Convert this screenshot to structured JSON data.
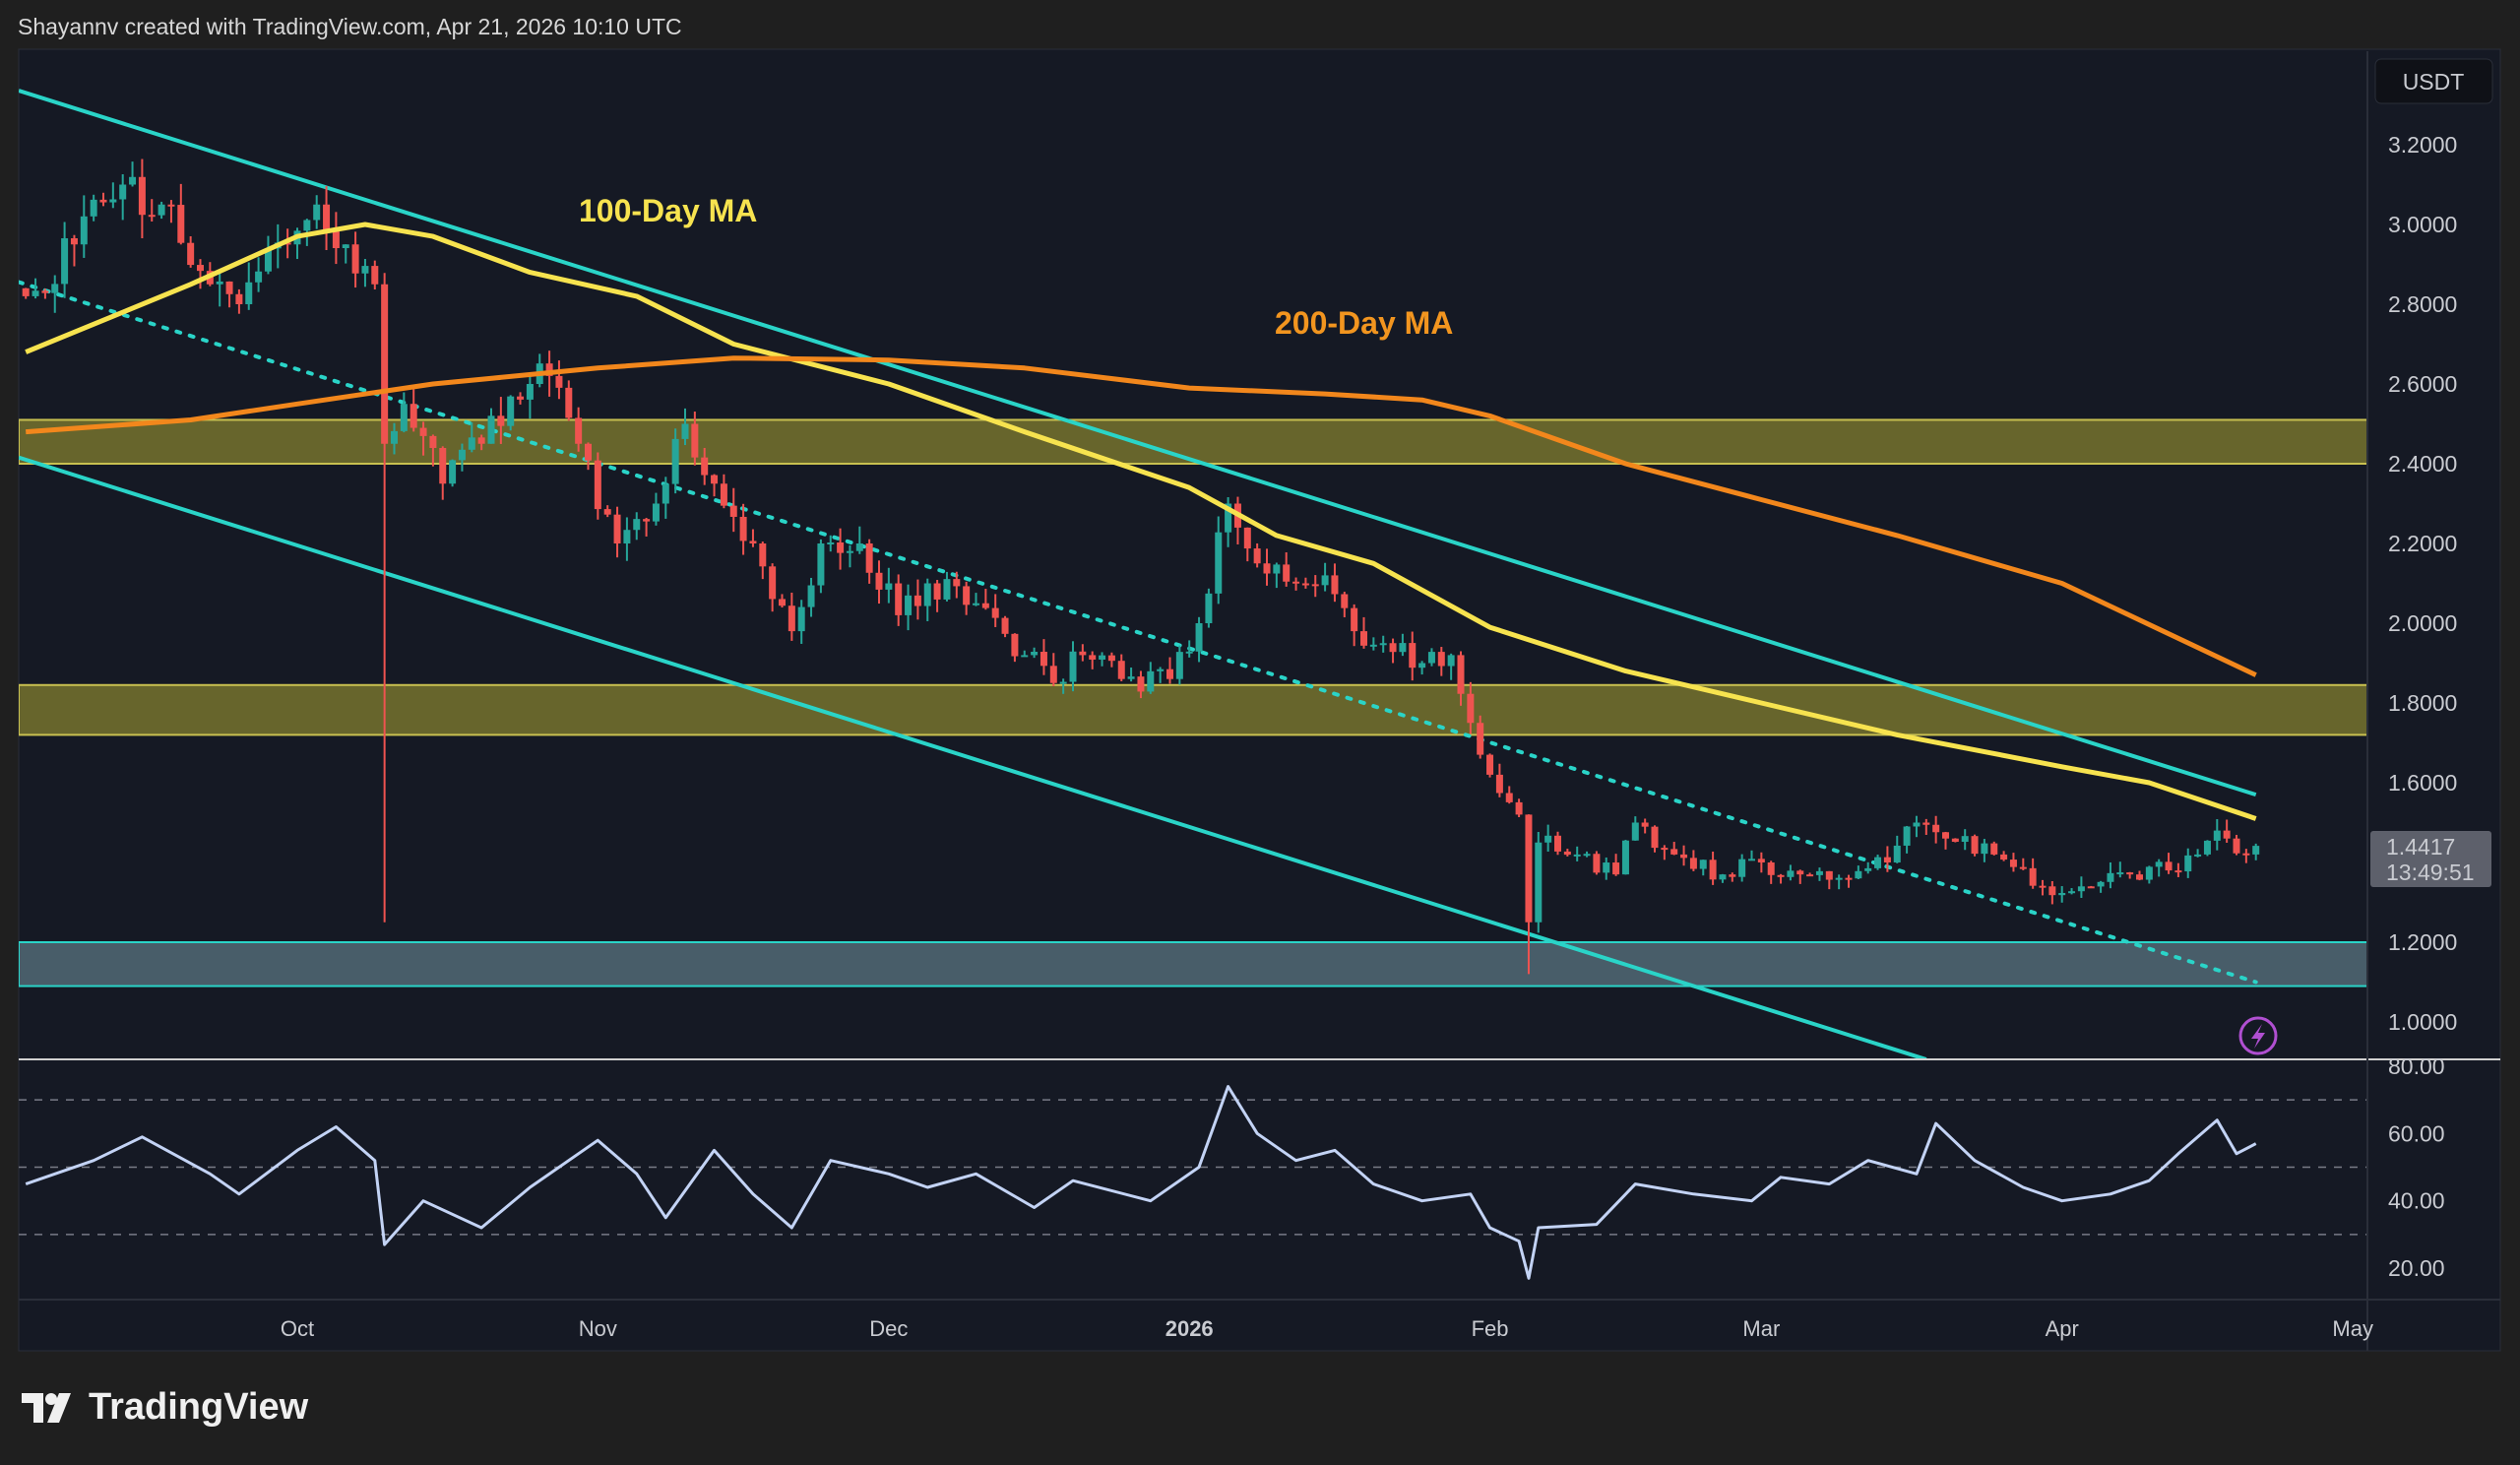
{
  "header": {
    "attribution": "Shayannv created with TradingView.com, Apr 21, 2026 10:10 UTC"
  },
  "logo": {
    "text": "TradingView"
  },
  "price_scale": {
    "currency": "USDT",
    "last_price": "1.4417",
    "countdown": "13:49:51"
  },
  "colors": {
    "up": "#26a69a",
    "down": "#ef5350",
    "ma100": "#f7e34f",
    "ma200": "#f2871c",
    "channel": "#2ad4c8",
    "zone": "#8a8630",
    "support_zone": "#5a7480",
    "rsi": "#c3d3f5",
    "background": "#151924"
  },
  "annotations": {
    "ma100_label": "100-Day MA",
    "ma200_label": "200-Day MA"
  },
  "alert_icon": "lightning-icon",
  "chart_data": [
    {
      "type": "candlestick",
      "interval": "1D",
      "ylim": [
        1.0,
        3.2
      ],
      "yticks": [
        "3.2000",
        "3.0000",
        "2.8000",
        "2.6000",
        "2.4000",
        "2.2000",
        "2.0000",
        "1.8000",
        "1.6000",
        "1.2000",
        "1.0000"
      ],
      "xticks": [
        {
          "label": "Oct",
          "date": "2025-10-01"
        },
        {
          "label": "Nov",
          "date": "2025-11-01"
        },
        {
          "label": "Dec",
          "date": "2025-12-01"
        },
        {
          "label": "2026",
          "date": "2026-01-01"
        },
        {
          "label": "Feb",
          "date": "2026-02-01"
        },
        {
          "label": "Mar",
          "date": "2026-03-01"
        },
        {
          "label": "Apr",
          "date": "2026-04-01"
        },
        {
          "label": "May",
          "date": "2026-05-01"
        }
      ],
      "grid": false,
      "close_points": [
        [
          "2025-09-03",
          2.82
        ],
        [
          "2025-09-08",
          2.95
        ],
        [
          "2025-09-13",
          3.1
        ],
        [
          "2025-09-17",
          3.05
        ],
        [
          "2025-09-22",
          2.85
        ],
        [
          "2025-09-25",
          2.8
        ],
        [
          "2025-09-30",
          2.95
        ],
        [
          "2025-10-03",
          3.05
        ],
        [
          "2025-10-06",
          2.95
        ],
        [
          "2025-10-09",
          2.85
        ],
        [
          "2025-10-10",
          2.45
        ],
        [
          "2025-10-12",
          2.55
        ],
        [
          "2025-10-16",
          2.35
        ],
        [
          "2025-10-20",
          2.45
        ],
        [
          "2025-10-25",
          2.6
        ],
        [
          "2025-10-27",
          2.62
        ],
        [
          "2025-10-30",
          2.45
        ],
        [
          "2025-11-03",
          2.2
        ],
        [
          "2025-11-07",
          2.3
        ],
        [
          "2025-11-10",
          2.5
        ],
        [
          "2025-11-13",
          2.35
        ],
        [
          "2025-11-17",
          2.2
        ],
        [
          "2025-11-21",
          1.98
        ],
        [
          "2025-11-24",
          2.2
        ],
        [
          "2025-11-28",
          2.2
        ],
        [
          "2025-12-02",
          2.02
        ],
        [
          "2025-12-05",
          2.1
        ],
        [
          "2025-12-10",
          2.05
        ],
        [
          "2025-12-15",
          1.92
        ],
        [
          "2025-12-18",
          1.85
        ],
        [
          "2025-12-21",
          1.92
        ],
        [
          "2025-12-25",
          1.86
        ],
        [
          "2025-12-30",
          1.86
        ],
        [
          "2026-01-02",
          2.0
        ],
        [
          "2026-01-05",
          2.3
        ],
        [
          "2026-01-08",
          2.15
        ],
        [
          "2026-01-12",
          2.1
        ],
        [
          "2026-01-15",
          2.12
        ],
        [
          "2026-01-18",
          1.98
        ],
        [
          "2026-01-21",
          1.95
        ],
        [
          "2026-01-25",
          1.9
        ],
        [
          "2026-01-28",
          1.92
        ],
        [
          "2026-01-30",
          1.75
        ],
        [
          "2026-02-01",
          1.62
        ],
        [
          "2026-02-04",
          1.52
        ],
        [
          "2026-02-05",
          1.25
        ],
        [
          "2026-02-06",
          1.45
        ],
        [
          "2026-02-10",
          1.42
        ],
        [
          "2026-02-14",
          1.37
        ],
        [
          "2026-02-16",
          1.5
        ],
        [
          "2026-02-20",
          1.42
        ],
        [
          "2026-02-25",
          1.37
        ],
        [
          "2026-03-01",
          1.4
        ],
        [
          "2026-03-05",
          1.37
        ],
        [
          "2026-03-10",
          1.36
        ],
        [
          "2026-03-14",
          1.4
        ],
        [
          "2026-03-17",
          1.5
        ],
        [
          "2026-03-20",
          1.46
        ],
        [
          "2026-03-25",
          1.42
        ],
        [
          "2026-03-30",
          1.34
        ],
        [
          "2026-04-03",
          1.34
        ],
        [
          "2026-04-08",
          1.37
        ],
        [
          "2026-04-12",
          1.38
        ],
        [
          "2026-04-15",
          1.42
        ],
        [
          "2026-04-17",
          1.48
        ],
        [
          "2026-04-18",
          1.46
        ],
        [
          "2026-04-20",
          1.42
        ],
        [
          "2026-04-21",
          1.4417
        ]
      ],
      "notable_wicks": [
        {
          "date": "2025-10-10",
          "low": 1.25
        },
        {
          "date": "2026-02-05",
          "low": 1.12
        }
      ],
      "series": [
        {
          "name": "100-Day MA",
          "values": [
            [
              "2025-09-03",
              2.68
            ],
            [
              "2025-09-20",
              2.85
            ],
            [
              "2025-10-01",
              2.97
            ],
            [
              "2025-10-08",
              3.0
            ],
            [
              "2025-10-15",
              2.97
            ],
            [
              "2025-10-25",
              2.88
            ],
            [
              "2025-11-05",
              2.82
            ],
            [
              "2025-11-15",
              2.7
            ],
            [
              "2025-12-01",
              2.6
            ],
            [
              "2025-12-15",
              2.48
            ],
            [
              "2026-01-01",
              2.34
            ],
            [
              "2026-01-10",
              2.22
            ],
            [
              "2026-01-20",
              2.15
            ],
            [
              "2026-02-01",
              1.99
            ],
            [
              "2026-02-15",
              1.88
            ],
            [
              "2026-03-01",
              1.8
            ],
            [
              "2026-03-15",
              1.72
            ],
            [
              "2026-04-01",
              1.64
            ],
            [
              "2026-04-10",
              1.6
            ],
            [
              "2026-04-21",
              1.51
            ]
          ]
        },
        {
          "name": "200-Day MA",
          "values": [
            [
              "2025-09-03",
              2.48
            ],
            [
              "2025-09-20",
              2.51
            ],
            [
              "2025-10-01",
              2.55
            ],
            [
              "2025-10-15",
              2.6
            ],
            [
              "2025-11-01",
              2.64
            ],
            [
              "2025-11-15",
              2.665
            ],
            [
              "2025-12-01",
              2.66
            ],
            [
              "2025-12-15",
              2.64
            ],
            [
              "2026-01-01",
              2.59
            ],
            [
              "2026-01-15",
              2.575
            ],
            [
              "2026-01-25",
              2.56
            ],
            [
              "2026-02-01",
              2.52
            ],
            [
              "2026-02-15",
              2.4
            ],
            [
              "2026-03-01",
              2.31
            ],
            [
              "2026-03-15",
              2.22
            ],
            [
              "2026-04-01",
              2.1
            ],
            [
              "2026-04-21",
              1.87
            ]
          ]
        }
      ],
      "zones": [
        {
          "low": 2.4,
          "high": 2.51,
          "kind": "resistance"
        },
        {
          "low": 1.72,
          "high": 1.845,
          "kind": "resistance"
        },
        {
          "low": 1.09,
          "high": 1.2,
          "kind": "support"
        }
      ],
      "channel": {
        "upper": [
          [
            "2025-09-03",
            3.33
          ],
          [
            "2026-04-21",
            1.57
          ]
        ],
        "lower": [
          [
            "2025-09-03",
            2.41
          ],
          [
            "2026-03-18",
            0.906
          ]
        ],
        "middle_dotted": [
          [
            "2025-09-03",
            2.85
          ],
          [
            "2026-04-21",
            1.1
          ]
        ]
      }
    },
    {
      "type": "line",
      "indicator": "RSI",
      "ylim": [
        15,
        82
      ],
      "yticks": [
        "80.00",
        "60.00",
        "40.00",
        "20.00"
      ],
      "levels": [
        70,
        50,
        30
      ],
      "values": [
        [
          "2025-09-03",
          45
        ],
        [
          "2025-09-10",
          52
        ],
        [
          "2025-09-15",
          59
        ],
        [
          "2025-09-22",
          48
        ],
        [
          "2025-09-25",
          42
        ],
        [
          "2025-10-01",
          55
        ],
        [
          "2025-10-05",
          62
        ],
        [
          "2025-10-09",
          52
        ],
        [
          "2025-10-10",
          27
        ],
        [
          "2025-10-14",
          40
        ],
        [
          "2025-10-20",
          32
        ],
        [
          "2025-10-25",
          44
        ],
        [
          "2025-11-01",
          58
        ],
        [
          "2025-11-05",
          48
        ],
        [
          "2025-11-08",
          35
        ],
        [
          "2025-11-13",
          55
        ],
        [
          "2025-11-17",
          42
        ],
        [
          "2025-11-21",
          32
        ],
        [
          "2025-11-25",
          52
        ],
        [
          "2025-12-01",
          48
        ],
        [
          "2025-12-05",
          44
        ],
        [
          "2025-12-10",
          48
        ],
        [
          "2025-12-16",
          38
        ],
        [
          "2025-12-20",
          46
        ],
        [
          "2025-12-28",
          40
        ],
        [
          "2026-01-02",
          50
        ],
        [
          "2026-01-05",
          74
        ],
        [
          "2026-01-08",
          60
        ],
        [
          "2026-01-12",
          52
        ],
        [
          "2026-01-16",
          55
        ],
        [
          "2026-01-20",
          45
        ],
        [
          "2026-01-25",
          40
        ],
        [
          "2026-01-30",
          42
        ],
        [
          "2026-02-01",
          32
        ],
        [
          "2026-02-04",
          28
        ],
        [
          "2026-02-05",
          17
        ],
        [
          "2026-02-06",
          32
        ],
        [
          "2026-02-12",
          33
        ],
        [
          "2026-02-16",
          45
        ],
        [
          "2026-02-22",
          42
        ],
        [
          "2026-02-28",
          40
        ],
        [
          "2026-03-03",
          47
        ],
        [
          "2026-03-08",
          45
        ],
        [
          "2026-03-12",
          52
        ],
        [
          "2026-03-17",
          48
        ],
        [
          "2026-03-19",
          63
        ],
        [
          "2026-03-23",
          52
        ],
        [
          "2026-03-28",
          44
        ],
        [
          "2026-04-01",
          40
        ],
        [
          "2026-04-06",
          42
        ],
        [
          "2026-04-10",
          46
        ],
        [
          "2026-04-13",
          54
        ],
        [
          "2026-04-17",
          64
        ],
        [
          "2026-04-19",
          54
        ],
        [
          "2026-04-21",
          57
        ]
      ]
    }
  ]
}
